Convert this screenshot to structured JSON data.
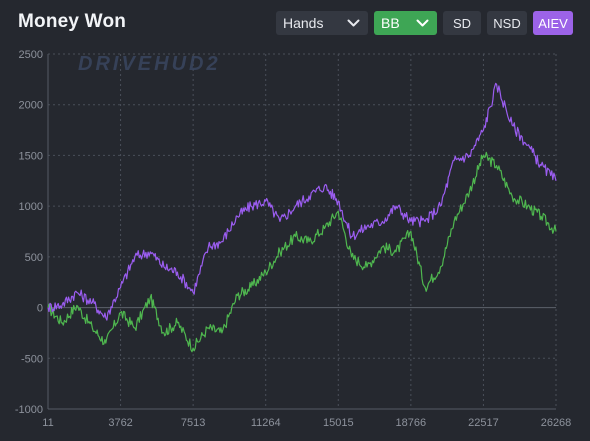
{
  "title": "Money Won",
  "watermark": "DRIVEHUD2",
  "controls": {
    "x_axis_select": "Hands",
    "unit_select": "BB",
    "sd_label": "SD",
    "nsd_label": "NSD",
    "aiev_label": "AIEV"
  },
  "colors": {
    "background": "#25282f",
    "button": "#343841",
    "bb_button": "#3ea655",
    "aiev_button": "#9c63e8",
    "won_line": "#4fb74f",
    "aiev_line": "#9b5df0",
    "grid": "#4a4f59",
    "tick_text": "#8d929c"
  },
  "icons": {
    "dropdown": "chevron-down-icon"
  },
  "chart_data": {
    "type": "line",
    "title": "Money Won",
    "xlabel": "",
    "ylabel": "",
    "xlim": [
      11,
      26268
    ],
    "ylim": [
      -1000,
      2500
    ],
    "x_ticks": [
      "11",
      "3762",
      "7513",
      "11264",
      "15015",
      "18766",
      "22517",
      "26268"
    ],
    "y_ticks": [
      "2500",
      "2000",
      "1500",
      "1000",
      "500",
      "0",
      "-500",
      "-1000"
    ],
    "grid": true,
    "legend": "none",
    "x": [
      11,
      750,
      1500,
      2300,
      3000,
      3762,
      4500,
      5300,
      6000,
      6700,
      7513,
      8300,
      9000,
      9800,
      10500,
      11264,
      12000,
      12800,
      13500,
      14300,
      15015,
      15700,
      16500,
      17300,
      18000,
      18766,
      19500,
      20300,
      21000,
      21800,
      22517,
      23200,
      24000,
      24800,
      25500,
      26268
    ],
    "series": [
      {
        "values": [
          0,
          -150,
          20,
          -200,
          -350,
          -50,
          -200,
          100,
          -250,
          -150,
          -400,
          -200,
          -250,
          120,
          200,
          350,
          550,
          700,
          650,
          780,
          950,
          500,
          400,
          600,
          550,
          750,
          200,
          400,
          850,
          1150,
          1500,
          1400,
          1100,
          1000,
          900,
          750
        ]
      },
      {
        "values": [
          0,
          30,
          150,
          50,
          -100,
          200,
          500,
          550,
          400,
          350,
          150,
          600,
          650,
          900,
          1000,
          1050,
          850,
          1000,
          1100,
          1200,
          1050,
          700,
          800,
          850,
          1000,
          850,
          850,
          1000,
          1450,
          1500,
          1750,
          2200,
          1800,
          1600,
          1400,
          1250
        ]
      }
    ]
  }
}
